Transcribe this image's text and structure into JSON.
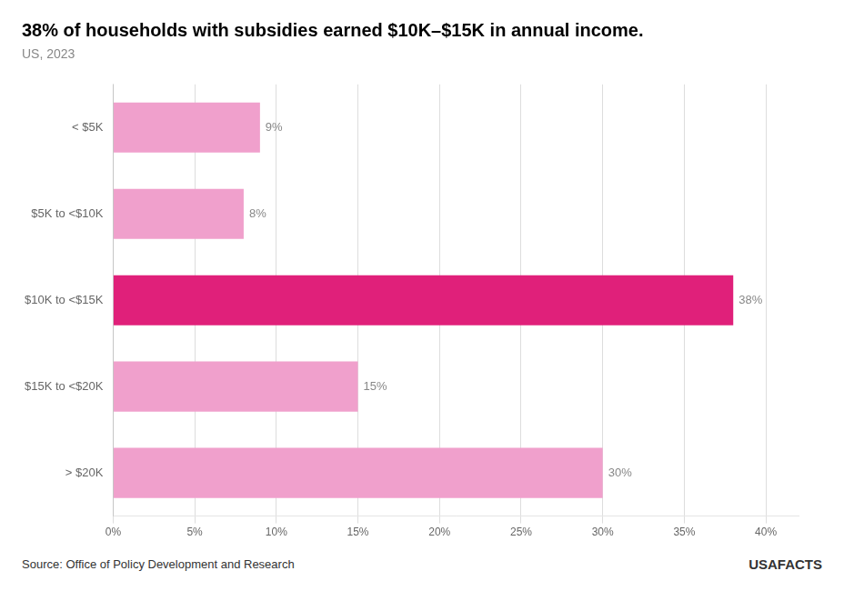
{
  "chart_data": {
    "type": "bar",
    "orientation": "horizontal",
    "title": "38% of households with subsidies earned $10K–$15K in annual income.",
    "subtitle": "US, 2023",
    "categories": [
      "< $5K",
      "$5K to <$10K",
      "$10K to <$15K",
      "$15K to <$20K",
      "> $20K"
    ],
    "values": [
      9,
      8,
      38,
      15,
      30
    ],
    "value_labels": [
      "9%",
      "8%",
      "38%",
      "15%",
      "30%"
    ],
    "data_labels": true,
    "colors": [
      "#f0a0cc",
      "#f0a0cc",
      "#e0207a",
      "#f0a0cc",
      "#f0a0cc"
    ],
    "xlim": [
      0,
      42
    ],
    "xticks": [
      {
        "value": 0,
        "label": "0%"
      },
      {
        "value": 5,
        "label": "5%"
      },
      {
        "value": 10,
        "label": "10%"
      },
      {
        "value": 15,
        "label": "15%"
      },
      {
        "value": 20,
        "label": "20%"
      },
      {
        "value": 25,
        "label": "25%"
      },
      {
        "value": 30,
        "label": "30%"
      },
      {
        "value": 35,
        "label": "35%"
      },
      {
        "value": 40,
        "label": "40%"
      }
    ],
    "grid": true,
    "annotations": [
      "Source: Office of Policy Development and Research",
      "USAFACTS"
    ]
  }
}
